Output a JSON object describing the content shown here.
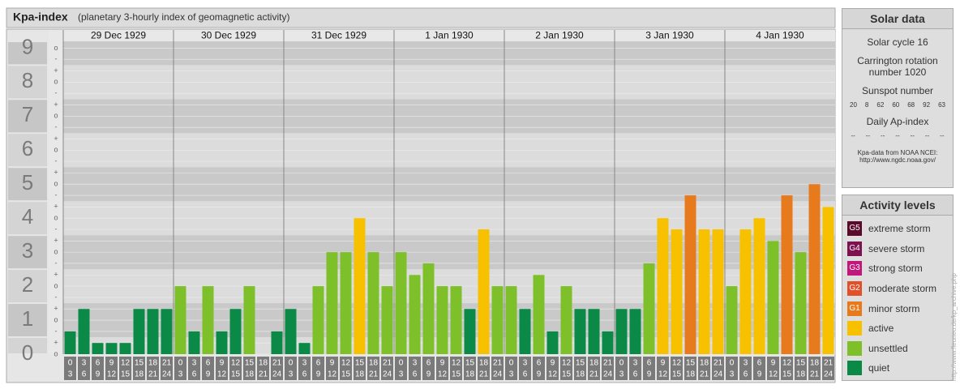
{
  "chart_data": {
    "type": "bar",
    "title": "Kpa-index",
    "subtitle": "(planetary 3-hourly index of geomagnetic activity)",
    "ylim": [
      0,
      9.2
    ],
    "yticks": [
      0,
      1,
      2,
      3,
      4,
      5,
      6,
      7,
      8,
      9
    ],
    "grid": true,
    "minor_ticks": [
      {
        "value": 0,
        "label": "o"
      },
      {
        "value": 0.33,
        "label": "+"
      },
      {
        "value": 0.67,
        "label": "-"
      },
      {
        "value": 1,
        "label": "o"
      },
      {
        "value": 1.33,
        "label": "+"
      },
      {
        "value": 1.67,
        "label": "-"
      },
      {
        "value": 2,
        "label": "o"
      },
      {
        "value": 2.33,
        "label": "+"
      },
      {
        "value": 2.67,
        "label": "-"
      },
      {
        "value": 3,
        "label": "o"
      },
      {
        "value": 3.33,
        "label": "+"
      },
      {
        "value": 3.67,
        "label": "-"
      },
      {
        "value": 4,
        "label": "o"
      },
      {
        "value": 4.33,
        "label": "+"
      },
      {
        "value": 4.67,
        "label": "-"
      },
      {
        "value": 5,
        "label": "o"
      },
      {
        "value": 5.33,
        "label": "+"
      },
      {
        "value": 5.67,
        "label": "-"
      },
      {
        "value": 6,
        "label": "o"
      },
      {
        "value": 6.33,
        "label": "+"
      },
      {
        "value": 6.67,
        "label": "-"
      },
      {
        "value": 7,
        "label": "o"
      },
      {
        "value": 7.33,
        "label": "+"
      },
      {
        "value": 7.67,
        "label": "-"
      },
      {
        "value": 8,
        "label": "o"
      },
      {
        "value": 8.33,
        "label": "+"
      },
      {
        "value": 8.67,
        "label": "-"
      },
      {
        "value": 9,
        "label": "o"
      }
    ],
    "hours": [
      0,
      3,
      6,
      9,
      12,
      15,
      18,
      21,
      24
    ],
    "days": [
      {
        "date": "29 Dec 1929",
        "values": [
          0.67,
          1.33,
          0.33,
          0.33,
          0.33,
          1.33,
          1.33,
          1.33
        ],
        "colors": [
          "#0b8a47",
          "#0b8a47",
          "#0b8a47",
          "#0b8a47",
          "#0b8a47",
          "#0b8a47",
          "#0b8a47",
          "#0b8a47"
        ]
      },
      {
        "date": "30 Dec 1929",
        "values": [
          2,
          0.67,
          2,
          0.67,
          1.33,
          2,
          0,
          0.67
        ],
        "colors": [
          "#7dc02a",
          "#0b8a47",
          "#7dc02a",
          "#0b8a47",
          "#0b8a47",
          "#7dc02a",
          "#0b8a47",
          "#0b8a47"
        ]
      },
      {
        "date": "31 Dec 1929",
        "values": [
          1.33,
          0.33,
          2,
          3,
          3,
          4,
          3,
          2
        ],
        "colors": [
          "#0b8a47",
          "#0b8a47",
          "#7dc02a",
          "#7dc02a",
          "#7dc02a",
          "#f7c100",
          "#7dc02a",
          "#7dc02a"
        ]
      },
      {
        "date": "1 Jan 1930",
        "values": [
          3,
          2.33,
          2.67,
          2,
          2,
          1.33,
          3.67,
          2
        ],
        "colors": [
          "#7dc02a",
          "#7dc02a",
          "#7dc02a",
          "#7dc02a",
          "#7dc02a",
          "#0b8a47",
          "#f7c100",
          "#7dc02a"
        ]
      },
      {
        "date": "2 Jan 1930",
        "values": [
          2,
          1.33,
          2.33,
          0.67,
          2,
          1.33,
          1.33,
          0.67
        ],
        "colors": [
          "#7dc02a",
          "#0b8a47",
          "#7dc02a",
          "#0b8a47",
          "#7dc02a",
          "#0b8a47",
          "#0b8a47",
          "#0b8a47"
        ]
      },
      {
        "date": "3 Jan 1930",
        "values": [
          1.33,
          1.33,
          2.67,
          4,
          3.67,
          4.67,
          3.67,
          3.67
        ],
        "colors": [
          "#0b8a47",
          "#0b8a47",
          "#7dc02a",
          "#f7c100",
          "#f7c100",
          "#e67a1d",
          "#f7c100",
          "#f7c100"
        ]
      },
      {
        "date": "4 Jan 1930",
        "values": [
          2,
          3.67,
          4,
          3.33,
          4.67,
          3,
          5,
          4.33
        ],
        "colors": [
          "#7dc02a",
          "#f7c100",
          "#f7c100",
          "#7dc02a",
          "#e67a1d",
          "#7dc02a",
          "#e67a1d",
          "#f7c100"
        ]
      }
    ]
  },
  "solar_data": {
    "title": "Solar data",
    "solar_cycle": "Solar cycle 16",
    "carrington": "Carrington rotation number 1020",
    "sunspot_title": "Sunspot number",
    "sunspot_numbers": [
      20,
      8,
      62,
      60,
      68,
      92,
      63
    ],
    "ap_title": "Daily Ap-index",
    "ap_values": [
      "--",
      "--",
      "--",
      "--",
      "--",
      "--",
      "--"
    ],
    "source": "Kpa-data from NOAA NCEI:",
    "source_url": "http://www.ngdc.noaa.gov/"
  },
  "activity_levels": {
    "title": "Activity levels",
    "levels": [
      {
        "badge": "G5",
        "label": "extreme storm",
        "color": "#5c0a2c"
      },
      {
        "badge": "G4",
        "label": "severe storm",
        "color": "#7e1150"
      },
      {
        "badge": "G3",
        "label": "strong storm",
        "color": "#c2187c"
      },
      {
        "badge": "G2",
        "label": "moderate storm",
        "color": "#e2502a"
      },
      {
        "badge": "G1",
        "label": "minor storm",
        "color": "#e67a1d"
      },
      {
        "label": "active",
        "color": "#f7c100"
      },
      {
        "label": "unsettled",
        "color": "#7dc02a"
      },
      {
        "label": "quiet",
        "color": "#0b8a47"
      }
    ]
  },
  "watermark": "http://www.fleurieu.de/kp_archive.php"
}
